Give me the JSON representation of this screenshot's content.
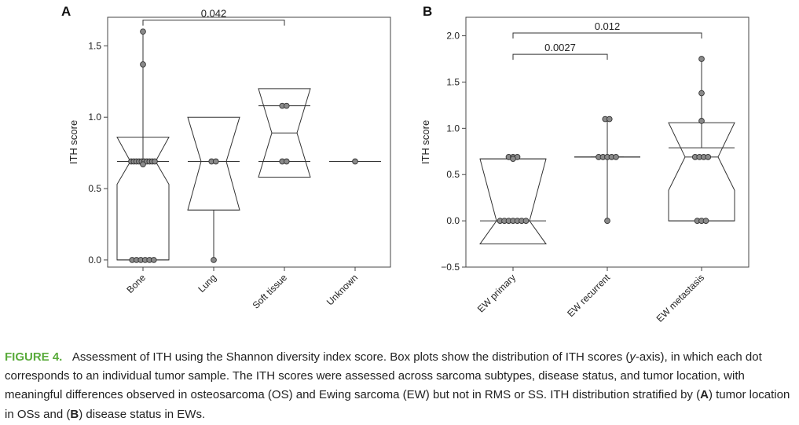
{
  "chart_data": [
    {
      "panel": "A",
      "type": "box",
      "ylabel": "ITH score",
      "ylim": [
        -0.05,
        1.7
      ],
      "yticks": [
        0.0,
        0.5,
        1.0,
        1.5
      ],
      "ytick_labels": [
        "0.0",
        "0.5",
        "1.0",
        "1.5"
      ],
      "categories": [
        "Bone",
        "Lung",
        "Soft tissue",
        "Unknown"
      ],
      "boxes": [
        {
          "q1": 0.0,
          "median": 0.69,
          "q3": 0.69,
          "notch_low": 0.53,
          "notch_high": 0.86,
          "whisker_low": 0.0,
          "whisker_high": 1.6
        },
        {
          "q1": 0.35,
          "median": 0.69,
          "q3": 0.69,
          "notch_low": 0.35,
          "notch_high": 1.0,
          "whisker_low": 0.0,
          "whisker_high": 0.69
        },
        {
          "q1": 0.69,
          "median": 0.89,
          "q3": 1.08,
          "notch_low": 0.58,
          "notch_high": 1.2,
          "whisker_low": 0.69,
          "whisker_high": 1.08
        },
        {
          "q1": 0.69,
          "median": 0.69,
          "q3": 0.69,
          "notch_low": 0.69,
          "notch_high": 0.69,
          "whisker_low": 0.69,
          "whisker_high": 0.69
        }
      ],
      "points": [
        [
          1.6,
          1.37,
          0.69,
          0.69,
          0.69,
          0.69,
          0.69,
          0.69,
          0.69,
          0.69,
          0.69,
          0.69,
          0.67,
          0.0,
          0.0,
          0.0,
          0.0,
          0.0,
          0.0
        ],
        [
          0.69,
          0.69,
          0.0
        ],
        [
          1.08,
          1.08,
          0.69,
          0.69
        ],
        [
          0.69
        ]
      ],
      "comparisons": [
        {
          "from": 0,
          "to": 2,
          "label": "0.042",
          "y": 1.68
        }
      ]
    },
    {
      "panel": "B",
      "type": "box",
      "ylabel": "ITH score",
      "ylim": [
        -0.5,
        2.2
      ],
      "yticks": [
        -0.5,
        0.0,
        0.5,
        1.0,
        1.5,
        2.0
      ],
      "ytick_labels": [
        "−0.5",
        "0.0",
        "0.5",
        "1.0",
        "1.5",
        "2.0"
      ],
      "categories": [
        "EW primary",
        "EW recurrent",
        "EW metastasis"
      ],
      "boxes": [
        {
          "q1": 0.0,
          "median": 0.0,
          "q3": 0.67,
          "notch_low": -0.25,
          "notch_high": 0.67,
          "whisker_low": 0.0,
          "whisker_high": 0.69
        },
        {
          "q1": 0.69,
          "median": 0.69,
          "q3": 0.69,
          "notch_low": 0.69,
          "notch_high": 0.69,
          "whisker_low": 0.0,
          "whisker_high": 1.1
        },
        {
          "q1": 0.0,
          "median": 0.69,
          "q3": 0.79,
          "notch_low": 0.33,
          "notch_high": 1.06,
          "whisker_low": 0.0,
          "whisker_high": 1.75
        }
      ],
      "points": [
        [
          0.69,
          0.69,
          0.69,
          0.67,
          0.0,
          0.0,
          0.0,
          0.0,
          0.0,
          0.0,
          0.0
        ],
        [
          1.1,
          1.1,
          0.69,
          0.69,
          0.69,
          0.69,
          0.69,
          0.0
        ],
        [
          1.75,
          1.38,
          1.08,
          0.69,
          0.69,
          0.69,
          0.69,
          0.0,
          0.0,
          0.0
        ]
      ],
      "comparisons": [
        {
          "from": 0,
          "to": 2,
          "label": "0.012",
          "y": 2.03
        },
        {
          "from": 0,
          "to": 1,
          "label": "0.0027",
          "y": 1.8
        }
      ]
    }
  ],
  "caption": {
    "label": "FIGURE 4.",
    "text_part1": "Assessment of ITH using the Shannon diversity index score. Box plots show the distribution of ITH scores (",
    "text_axis": "y",
    "text_part2": "-axis), in which each dot corresponds to an individual tumor sample. The ITH scores were assessed across sarcoma subtypes, disease status, and tumor location, with meaningful differences observed in osteosarcoma (OS) and Ewing sarcoma (EW) but not in RMS or SS. ITH distribution stratified by (",
    "panel_a": "A",
    "text_part3": ") tumor location in OSs and (",
    "panel_b": "B",
    "text_part4": ") disease status in EWs."
  },
  "colors": {
    "box_line": "#333333",
    "point_fill": "#8a8a8a",
    "point_stroke": "#333333",
    "caption_label": "#5aab3c"
  }
}
